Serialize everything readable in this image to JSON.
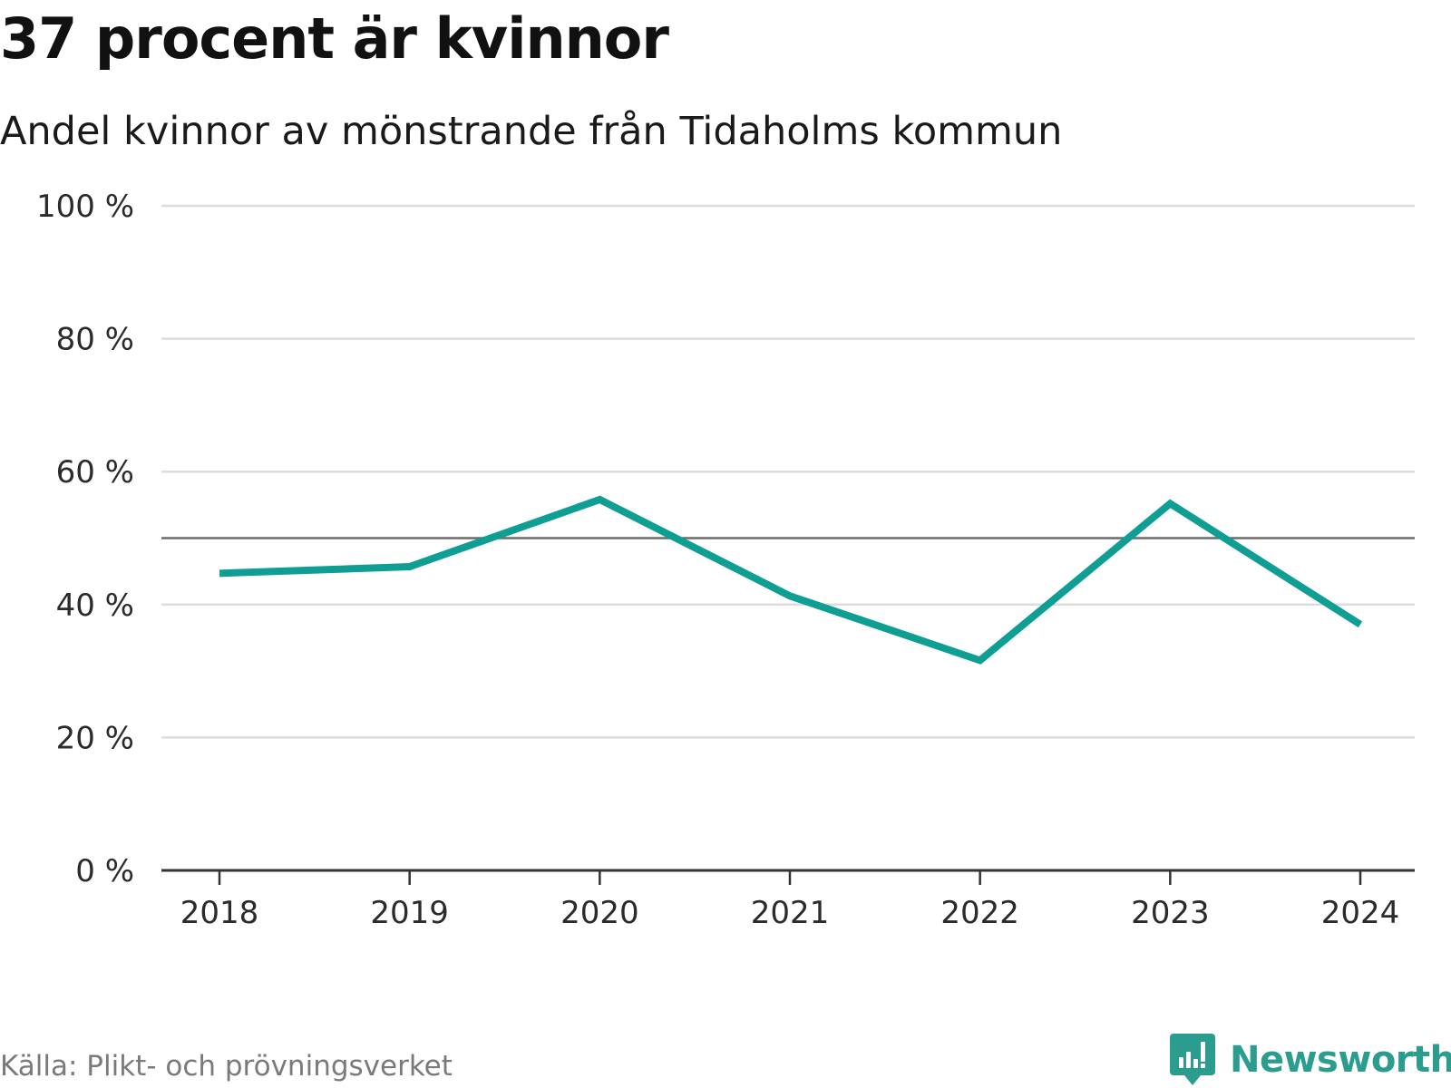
{
  "title": "37 procent är kvinnor",
  "subtitle": "Andel kvinnor av mönstrande från Tidaholms kommun",
  "source": "Källa: Plikt- och prövningsverket",
  "brand": {
    "name": "Newsworthy",
    "logo_icon": "bar-chart-speech-bubble-icon"
  },
  "colors": {
    "line": "#0f9e94",
    "reference_line": "#6b6b6b",
    "grid": "#dddddd",
    "axis": "#333333",
    "brand": "#2a9d8f"
  },
  "chart_data": {
    "type": "line",
    "title": "37 procent är kvinnor",
    "subtitle": "Andel kvinnor av mönstrande från Tidaholms kommun",
    "xlabel": "",
    "ylabel": "",
    "categories": [
      "2018",
      "2019",
      "2020",
      "2021",
      "2022",
      "2023",
      "2024"
    ],
    "series": [
      {
        "name": "Andel kvinnor",
        "values": [
          44.7,
          45.7,
          55.8,
          41.3,
          31.6,
          55.2,
          37.0
        ]
      }
    ],
    "reference_line": 50,
    "ylim": [
      0,
      100
    ],
    "yticks": [
      0,
      20,
      40,
      60,
      80,
      100
    ],
    "ytick_labels": [
      "0 %",
      "20 %",
      "40 %",
      "60 %",
      "80 %",
      "100 %"
    ],
    "grid": true,
    "legend": "none"
  }
}
